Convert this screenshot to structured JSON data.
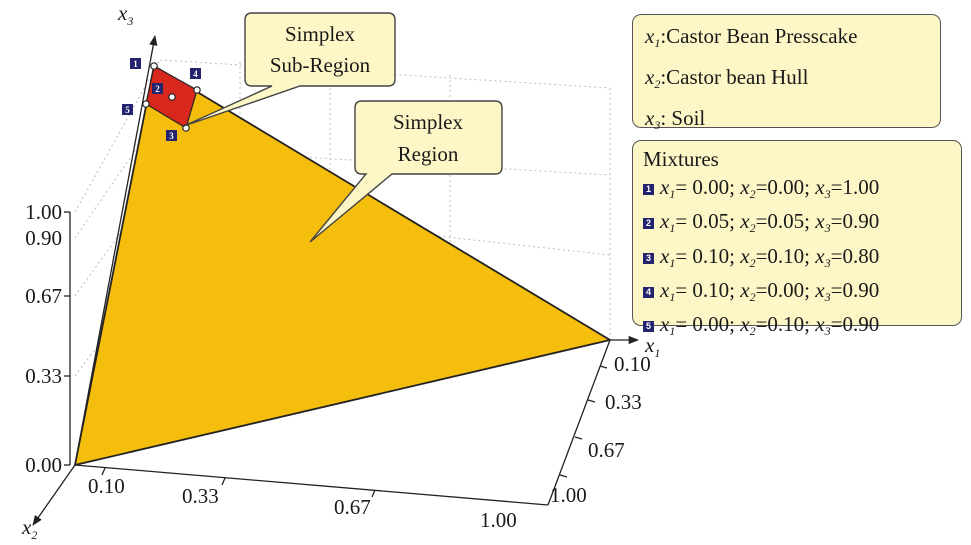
{
  "axes": {
    "x1_label": "x",
    "x1_sub": "1",
    "x2_label": "x",
    "x2_sub": "2",
    "x3_label": "x",
    "x3_sub": "3",
    "vertical_ticks": [
      "1.00",
      "0.90",
      "0.67",
      "0.33",
      "0.00"
    ],
    "front_ticks": [
      "0.10",
      "0.33",
      "0.67",
      "1.00"
    ],
    "right_ticks": [
      "0.10",
      "0.33",
      "0.67",
      "1.00"
    ]
  },
  "callouts": {
    "subregion": [
      "Simplex",
      "Sub-Region"
    ],
    "region": [
      "Simplex",
      "Region"
    ]
  },
  "legend": {
    "items": [
      {
        "var": "x",
        "sub": "1",
        "text": ":Castor Bean Presscake"
      },
      {
        "var": "x",
        "sub": "2",
        "text": ":Castor bean Hull"
      },
      {
        "var": "x",
        "sub": "3",
        "text": ": Soil"
      }
    ]
  },
  "mixtures": {
    "title": "Mixtures",
    "rows": [
      {
        "id": "1",
        "x1": "0.00",
        "x2": "0.00",
        "x3": "1.00"
      },
      {
        "id": "2",
        "x1": "0.05",
        "x2": "0.05",
        "x3": "0.90"
      },
      {
        "id": "3",
        "x1": "0.10",
        "x2": "0.10",
        "x3": "0.80"
      },
      {
        "id": "4",
        "x1": "0.10",
        "x2": "0.00",
        "x3": "0.90"
      },
      {
        "id": "5",
        "x1": "0.00",
        "x2": "0.10",
        "x3": "0.90"
      }
    ]
  },
  "colors": {
    "region_fill": "#f5bd0c",
    "subregion_fill": "#d8281d",
    "callout_fill": "#fdf6c6",
    "badge_fill": "#23236e"
  }
}
